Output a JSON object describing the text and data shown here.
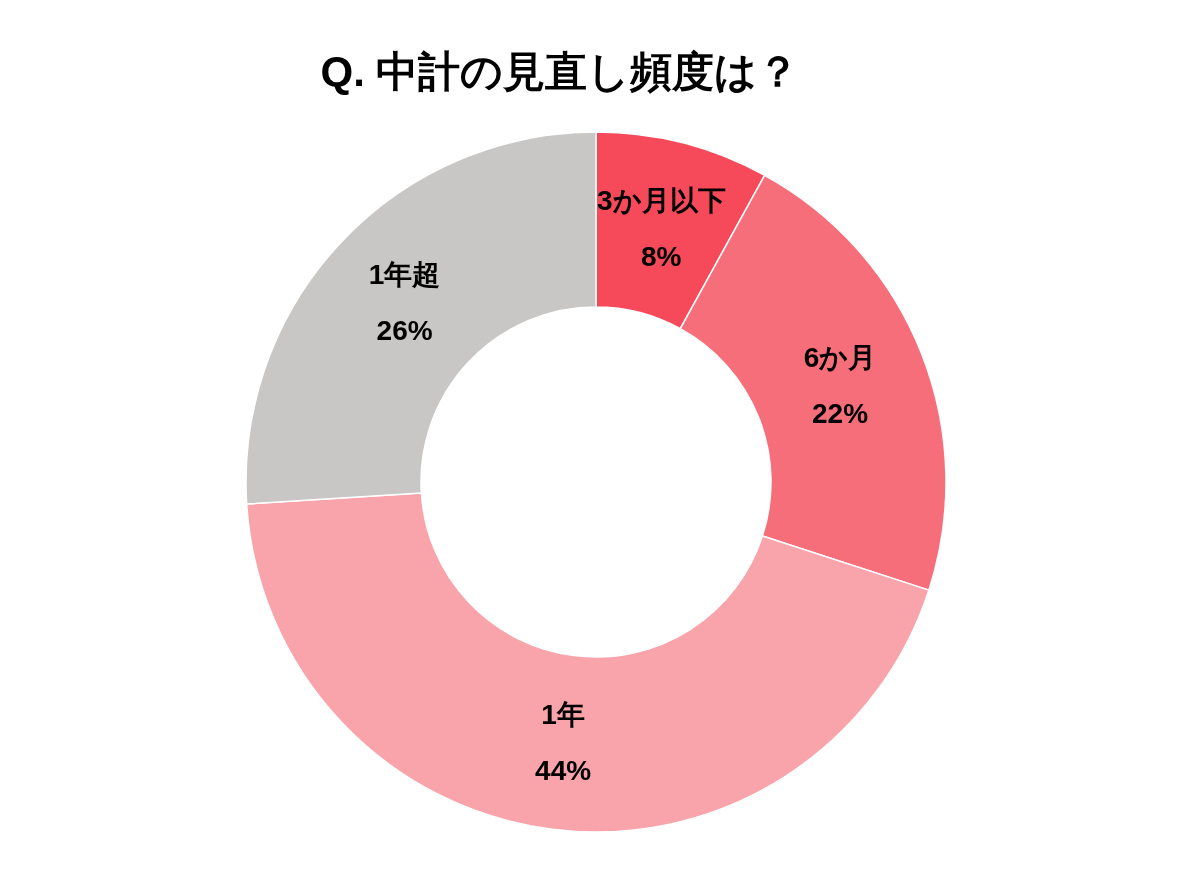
{
  "chart_data": {
    "type": "donut",
    "title": "Q. 中計の見直し頻度は？",
    "categories": [
      "3か月以下",
      "6か月",
      "1年",
      "1年超"
    ],
    "values": [
      8,
      22,
      44,
      26
    ],
    "colors": [
      "#f64a5a",
      "#f76e7b",
      "#f9a3aa",
      "#c8c7c6"
    ],
    "value_labels": [
      "8%",
      "22%",
      "44%",
      "26%"
    ]
  }
}
